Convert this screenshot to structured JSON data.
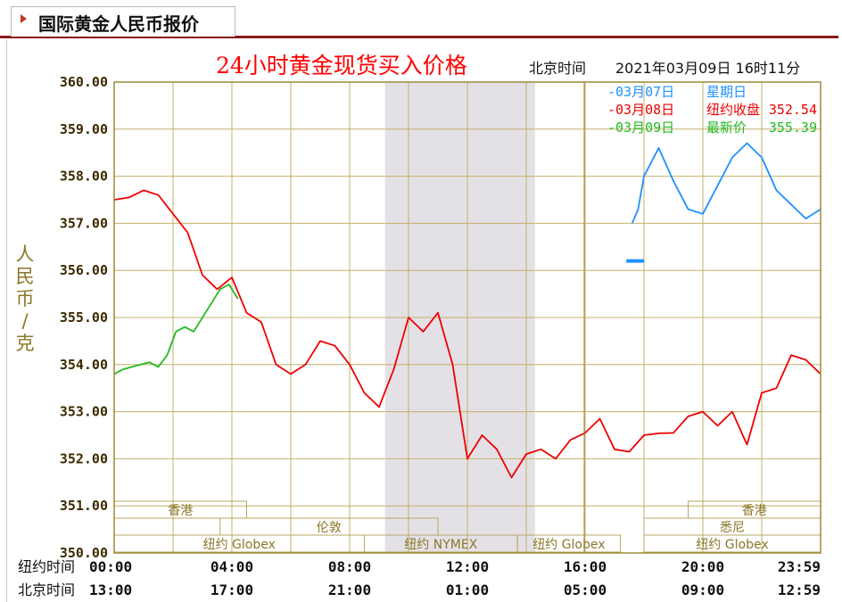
{
  "page": {
    "tab_title": "国际黄金人民币报价"
  },
  "colors": {
    "frame": "#9c8a3a",
    "grid": "#c4b06a",
    "axis_text": "#3c2a00",
    "ylabel": "#8b7728",
    "title": "#ff0000",
    "series_0307": "#1e90ff",
    "series_0308": "#ee0000",
    "series_0309": "#22bb22",
    "shade": "#e4e1e6",
    "tab_rule": "#8a1a1a"
  },
  "chart_data": {
    "type": "line",
    "title": "24小时黄金现货买入价格",
    "beijing_time_label": "北京时间",
    "timestamp": "2021年03月09日 16时11分",
    "ylabel": "人民币/克",
    "ylim": [
      350,
      360
    ],
    "yticks": [
      "360.00",
      "359.00",
      "358.00",
      "357.00",
      "356.00",
      "355.00",
      "354.00",
      "353.00",
      "352.00",
      "351.00",
      "350.00"
    ],
    "x_range_hours": [
      0,
      24
    ],
    "x_ticks_hours": [
      0,
      4,
      8,
      12,
      16,
      20,
      24
    ],
    "row_labels": {
      "ny": "纽约时间",
      "bj": "北京时间"
    },
    "ny_ticks": [
      "00:00",
      "04:00",
      "08:00",
      "12:00",
      "16:00",
      "20:00",
      "23:59"
    ],
    "bj_ticks": [
      "13:00",
      "17:00",
      "21:00",
      "01:00",
      "05:00",
      "09:00",
      "12:59"
    ],
    "grid": true,
    "shaded_span_hours": [
      9.2,
      14.3
    ],
    "legend": [
      {
        "date": "-03月07日",
        "desc": "星期日",
        "value": "",
        "color_key": "series_0307"
      },
      {
        "date": "-03月08日",
        "desc": "纽约收盘",
        "value": "352.54",
        "color_key": "series_0308"
      },
      {
        "date": "-03月09日",
        "desc": "最新价",
        "value": "355.39",
        "color_key": "series_0309"
      }
    ],
    "sessions": [
      {
        "name": "香港",
        "row": 1,
        "start": 0,
        "end": 4.5
      },
      {
        "name": "香港",
        "row": 1,
        "start": 19.5,
        "end": 24
      },
      {
        "name": "伦敦",
        "row": 2,
        "start": 3.6,
        "end": 11.0
      },
      {
        "name": "悉尼",
        "row": 2,
        "start": 18.0,
        "end": 24
      },
      {
        "name": "纽约 Globex",
        "row": 3,
        "start": 0,
        "end": 8.5
      },
      {
        "name": "纽约 NYMEX",
        "row": 3,
        "start": 8.5,
        "end": 13.7
      },
      {
        "name": "纽约 Globex",
        "row": 3,
        "start": 13.7,
        "end": 17.2
      },
      {
        "name": "纽约 Globex",
        "row": 3,
        "start": 18.0,
        "end": 24
      }
    ],
    "series": [
      {
        "name": "03月08日",
        "color_key": "series_0308",
        "x": [
          0,
          0.5,
          1.0,
          1.5,
          2.0,
          2.5,
          3.0,
          3.5,
          4.0,
          4.5,
          5.0,
          5.5,
          6.0,
          6.5,
          7.0,
          7.5,
          8.0,
          8.5,
          9.0,
          9.5,
          10.0,
          10.5,
          11.0,
          11.5,
          12.0,
          12.5,
          13.0,
          13.5,
          14.0,
          14.5,
          15.0,
          15.5,
          16.0,
          16.5,
          17.0,
          17.5,
          18.0,
          18.5,
          19.0,
          19.5,
          20.0,
          20.5,
          21.0,
          21.5,
          22.0,
          22.5,
          23.0,
          23.5,
          24.0
        ],
        "y": [
          357.5,
          357.55,
          357.7,
          357.6,
          357.2,
          356.8,
          355.9,
          355.6,
          355.85,
          355.1,
          354.9,
          354.0,
          353.8,
          354.0,
          354.5,
          354.4,
          354.0,
          353.4,
          353.1,
          353.9,
          355.0,
          354.7,
          355.1,
          354.0,
          352.0,
          352.5,
          352.2,
          351.6,
          352.1,
          352.2,
          352.0,
          352.4,
          352.55,
          352.85,
          352.2,
          352.15,
          352.5,
          352.54,
          352.55,
          352.9,
          353.0,
          352.7,
          353.0,
          352.3,
          353.4,
          353.5,
          354.2,
          354.1,
          353.8
        ]
      },
      {
        "name": "03月09日",
        "color_key": "series_0309",
        "x": [
          0,
          0.3,
          0.6,
          0.9,
          1.2,
          1.5,
          1.8,
          2.1,
          2.4,
          2.7,
          3.0,
          3.3,
          3.6,
          3.9,
          4.2
        ],
        "y": [
          353.8,
          353.9,
          353.95,
          354.0,
          354.05,
          353.95,
          354.2,
          354.7,
          354.8,
          354.7,
          355.0,
          355.3,
          355.6,
          355.7,
          355.4
        ]
      },
      {
        "name": "03月07日",
        "color_key": "series_0307",
        "x": [
          17.6,
          17.8,
          18.0,
          18.5,
          19.0,
          19.5,
          20.0,
          20.5,
          21.0,
          21.5,
          22.0,
          22.5,
          23.0,
          23.5,
          24.0
        ],
        "y": [
          357.0,
          357.3,
          358.0,
          358.6,
          357.9,
          357.3,
          357.2,
          357.8,
          358.4,
          358.7,
          358.4,
          357.7,
          357.4,
          357.1,
          357.3
        ]
      }
    ],
    "sunday_flat": {
      "x": [
        17.4,
        18.0
      ],
      "y": 356.2
    }
  }
}
